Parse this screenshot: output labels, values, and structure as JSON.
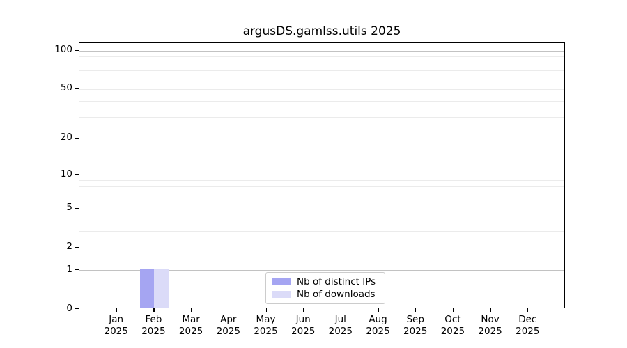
{
  "chart_data": {
    "type": "bar",
    "title": "argusDS.gamlss.utils 2025",
    "x_months": [
      "Jan",
      "Feb",
      "Mar",
      "Apr",
      "May",
      "Jun",
      "Jul",
      "Aug",
      "Sep",
      "Oct",
      "Nov",
      "Dec"
    ],
    "x_year": "2025",
    "series": [
      {
        "name": "Nb of distinct IPs",
        "color": "#a5a5f2",
        "values": [
          0,
          1,
          0,
          0,
          0,
          0,
          0,
          0,
          0,
          0,
          0,
          0
        ]
      },
      {
        "name": "Nb of downloads",
        "color": "#dbdbf8",
        "values": [
          0,
          1,
          0,
          0,
          0,
          0,
          0,
          0,
          0,
          0,
          0,
          0
        ]
      }
    ],
    "y_scale": "log1p",
    "y_ticks": [
      0,
      1,
      2,
      5,
      10,
      20,
      50,
      100
    ],
    "major_gridlines": [
      1,
      10,
      100
    ],
    "minor_gridlines": [
      2,
      3,
      4,
      5,
      6,
      7,
      8,
      9,
      20,
      30,
      40,
      50,
      60,
      70,
      80,
      90
    ],
    "ylim": [
      0,
      114
    ],
    "legend": {
      "position": "lower center",
      "entries": [
        "Nb of distinct IPs",
        "Nb of downloads"
      ]
    },
    "colors": {
      "major_grid": "#c2c2c2",
      "minor_grid": "#ebebeb",
      "axis": "#000000",
      "background": "#ffffff"
    }
  }
}
